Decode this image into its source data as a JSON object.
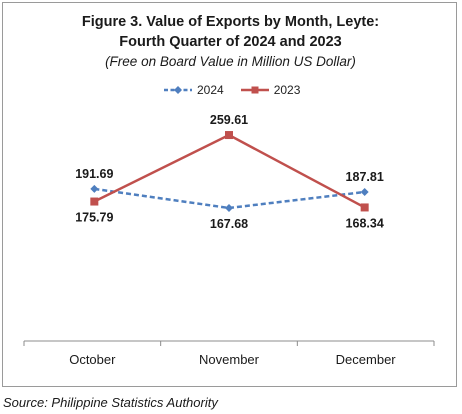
{
  "chart_data": {
    "type": "line",
    "title": "Figure 3. Value of Exports by Month, Leyte:",
    "title_line2": "Fourth Quarter of 2024 and 2023",
    "subtitle": "(Free on Board Value in Million US Dollar)",
    "categories": [
      "October",
      "November",
      "December"
    ],
    "series": [
      {
        "name": "2024",
        "values": [
          191.69,
          167.68,
          187.81
        ],
        "labels": [
          "191.69",
          "167.68",
          "187.81"
        ],
        "label_pos": [
          "above",
          "below",
          "above"
        ],
        "color": "#4f7fbf",
        "line_style": "dashed",
        "marker": "diamond"
      },
      {
        "name": "2023",
        "values": [
          175.79,
          259.61,
          168.34
        ],
        "labels": [
          "175.79",
          "259.61",
          "168.34"
        ],
        "label_pos": [
          "below",
          "above",
          "below"
        ],
        "color": "#c0504d",
        "line_style": "solid",
        "marker": "square"
      }
    ],
    "ylim": [
      0,
      300
    ],
    "grid": false,
    "legend_position": "top"
  },
  "source": "Source: Philippine Statistics Authority"
}
